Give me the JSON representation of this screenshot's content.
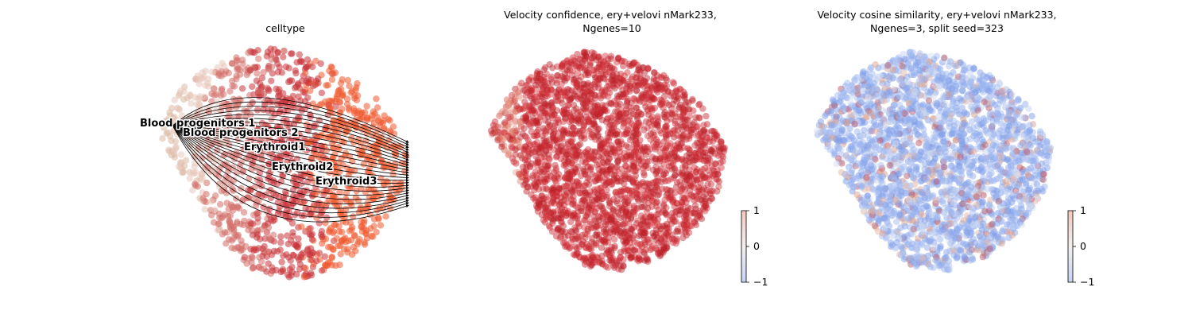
{
  "chart_data": [
    {
      "type": "scatter",
      "title": "celltype",
      "color_by": "celltype",
      "overlay": "velocity streamlines with arrows",
      "legend_placement": "on-data",
      "categories": [
        {
          "name": "Blood progenitors 1",
          "color": "#dcb9a6"
        },
        {
          "name": "Blood progenitors 2",
          "color": "#e8c9bb"
        },
        {
          "name": "Erythroid1",
          "color": "#d4706a"
        },
        {
          "name": "Erythroid2",
          "color": "#c9353a"
        },
        {
          "name": "Erythroid3",
          "color": "#ee5a2f"
        }
      ],
      "axes_visible": false
    },
    {
      "type": "scatter",
      "title": "Velocity confidence, ery+velovi nMark233,\nNgenes=10",
      "title_lines": [
        "Velocity confidence, ery+velovi nMark233,",
        "Ngenes=10"
      ],
      "colormap": "coolwarm",
      "colorbar": {
        "ticks": [
          "1",
          "0",
          "−1"
        ],
        "range": [
          -1,
          1
        ]
      },
      "dominant_color": "#c9262e",
      "axes_visible": false
    },
    {
      "type": "scatter",
      "title": "Velocity cosine similarity, ery+velovi nMark233,\nNgenes=3, split seed=323",
      "title_lines": [
        "Velocity cosine similarity, ery+velovi nMark233,",
        "Ngenes=3, split seed=323"
      ],
      "colormap": "coolwarm",
      "colorbar": {
        "ticks": [
          "1",
          "0",
          "−1"
        ],
        "range": [
          -1,
          1
        ]
      },
      "dominant_color": "#8aa8ee",
      "axes_visible": false
    }
  ]
}
